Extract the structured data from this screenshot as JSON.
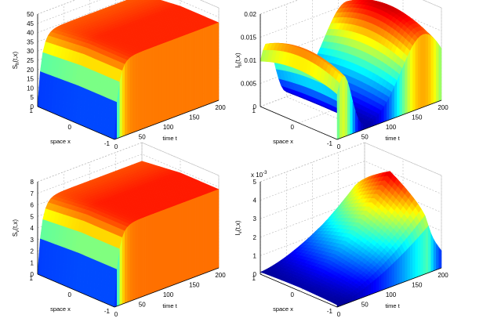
{
  "chart_data": [
    {
      "type": "surface",
      "zlabel": "S",
      "zlabel_sub": "h",
      "zlabel_tail": "(t,x)",
      "xlabel": "space x",
      "ylabel": "time t",
      "zlim": [
        0,
        50
      ],
      "zticks": [
        "0",
        "5",
        "10",
        "15",
        "20",
        "25",
        "30",
        "35",
        "40",
        "45",
        "50"
      ],
      "xlim": [
        -1,
        1
      ],
      "xticks": [
        "1",
        "0",
        "-1"
      ],
      "tlim": [
        0,
        200
      ],
      "tticks": [
        "0",
        "50",
        "100",
        "150",
        "200"
      ],
      "exponent": "",
      "surface": {
        "shape": "saturating",
        "initial": 0,
        "plateau": 42,
        "rise_time": 8
      }
    },
    {
      "type": "surface",
      "zlabel": "I",
      "zlabel_sub": "h",
      "zlabel_tail": "(t,x)",
      "xlabel": "space x",
      "ylabel": "time t",
      "zlim": [
        0,
        0.02
      ],
      "zticks": [
        "0",
        "0.005",
        "0.01",
        "0.015",
        "0.02"
      ],
      "xlim": [
        -1,
        1
      ],
      "xticks": [
        "1",
        "0",
        "-1"
      ],
      "tlim": [
        0,
        200
      ],
      "tticks": [
        "0",
        "50",
        "100",
        "150",
        "200"
      ],
      "exponent": "",
      "surface": {
        "shape": "two-peak",
        "peak_early": 0.0155,
        "peak_late": 0.0185,
        "dip": 0.0005
      }
    },
    {
      "type": "surface",
      "zlabel": "S",
      "zlabel_sub": "v",
      "zlabel_tail": "(t,x)",
      "xlabel": "space x",
      "ylabel": "time t",
      "zlim": [
        0,
        8
      ],
      "zticks": [
        "0",
        "1",
        "2",
        "3",
        "4",
        "5",
        "6",
        "7",
        "8"
      ],
      "xlim": [
        -1,
        1
      ],
      "xticks": [
        "1",
        "0",
        "-1"
      ],
      "tlim": [
        0,
        200
      ],
      "tticks": [
        "0",
        "50",
        "100",
        "150",
        "200"
      ],
      "exponent": "",
      "surface": {
        "shape": "saturating",
        "initial": 0,
        "plateau": 6.8,
        "rise_time": 8
      }
    },
    {
      "type": "surface",
      "zlabel": "I",
      "zlabel_sub": "v",
      "zlabel_tail": "(t,x)",
      "xlabel": "space x",
      "ylabel": "time t",
      "zlim": [
        0,
        5
      ],
      "zticks": [
        "0",
        "1",
        "2",
        "3",
        "4",
        "5"
      ],
      "xlim": [
        -1,
        1
      ],
      "xticks": [
        "1",
        "0",
        "-1"
      ],
      "tlim": [
        0,
        200
      ],
      "tticks": [
        "0",
        "50",
        "100",
        "150",
        "200"
      ],
      "exponent": "x 10",
      "exponent_power": "-3",
      "surface": {
        "shape": "growth-then-decay",
        "initial": 0.2,
        "peak": 4.6,
        "peak_time": 175
      }
    }
  ]
}
